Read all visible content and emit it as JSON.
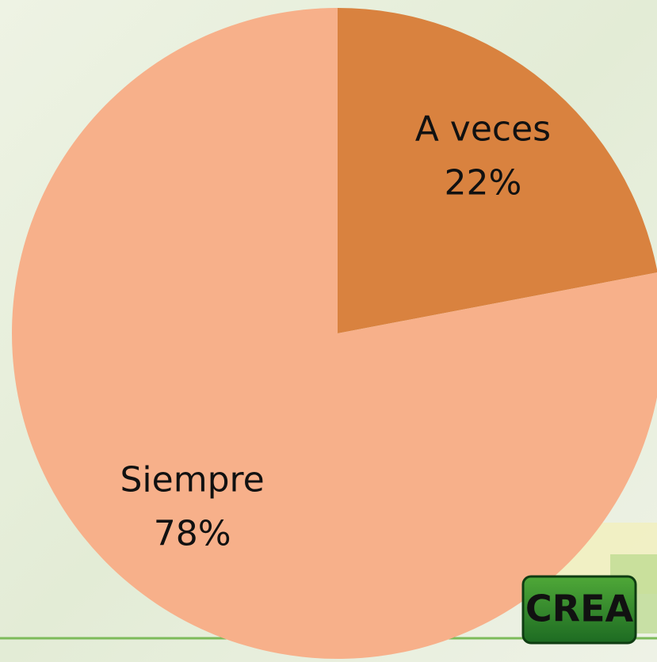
{
  "chart_data": {
    "type": "pie",
    "categories": [
      "A veces",
      "Siempre"
    ],
    "values": [
      22,
      78
    ],
    "value_labels": [
      "22%",
      "78%"
    ],
    "colors": [
      "#d9823f",
      "#f7b08a"
    ]
  },
  "logo": "CREA"
}
